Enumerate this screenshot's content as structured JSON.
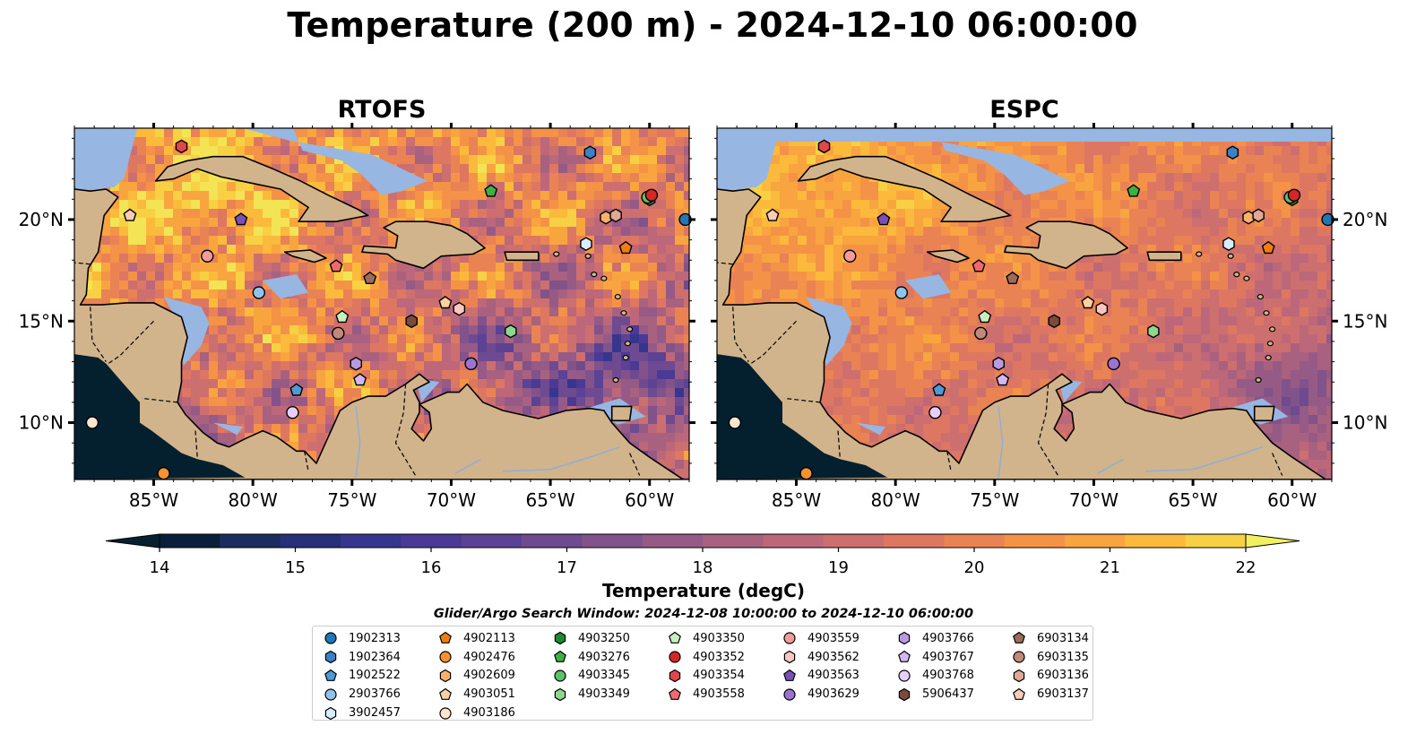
{
  "figure_title": "Temperature (200 m) - 2024-12-10 06:00:00",
  "panels": [
    {
      "title": "RTOFS",
      "grid": "rtofs"
    },
    {
      "title": "ESPC",
      "grid": "espc"
    }
  ],
  "map_extent": {
    "lon": [
      -89,
      -58
    ],
    "lat": [
      7.2,
      24.5
    ]
  },
  "lon_ticks": [
    -85,
    -80,
    -75,
    -70,
    -65,
    -60
  ],
  "lon_tick_labels": [
    "85°W",
    "80°W",
    "75°W",
    "70°W",
    "65°W",
    "60°W"
  ],
  "lat_ticks": [
    10,
    15,
    20
  ],
  "lat_tick_labels": [
    "10°N",
    "15°N",
    "20°N"
  ],
  "colorbar": {
    "label": "Temperature (degC)",
    "min": 14,
    "max": 22,
    "extend": "both",
    "tick_values": [
      14,
      15,
      16,
      17,
      18,
      19,
      20,
      21,
      22
    ],
    "tick_labels": [
      "14",
      "15",
      "16",
      "17",
      "18",
      "19",
      "20",
      "21",
      "22"
    ],
    "colors": [
      "#0b1f3a",
      "#1c2c5e",
      "#29307a",
      "#37368e",
      "#4a3a96",
      "#5b4295",
      "#6e4a90",
      "#82528a",
      "#965a86",
      "#a96180",
      "#bc677a",
      "#cd6e6f",
      "#dd7762",
      "#ea8354",
      "#f49348",
      "#f9a53f",
      "#fbba3c",
      "#f8d044",
      "#f3e455"
    ],
    "under_color": "#06202f",
    "over_color": "#f0f060"
  },
  "search_window": "Glider/Argo Search Window: 2024-12-08 10:00:00 to 2024-12-10 06:00:00",
  "colors": {
    "land": "#d2b48c",
    "shallow_water": "#97b6e1",
    "deep_cold": "#04202f",
    "coastline": "#000000"
  },
  "floats": [
    {
      "id": "1902313",
      "marker": "circle",
      "color": "#1f77b4",
      "lon": -58.2,
      "lat": 20.0
    },
    {
      "id": "1902364",
      "marker": "hexagon",
      "color": "#3a82c4",
      "lon": -63.0,
      "lat": 23.3
    },
    {
      "id": "1902522",
      "marker": "pentagon",
      "color": "#4d9ad6",
      "lon": -77.8,
      "lat": 11.6
    },
    {
      "id": "2903766",
      "marker": "circle",
      "color": "#8fc3ec",
      "lon": -79.7,
      "lat": 16.4
    },
    {
      "id": "3902457",
      "marker": "hexagon",
      "color": "#d8ecfb",
      "lon": -63.2,
      "lat": 18.8
    },
    {
      "id": "4902113",
      "marker": "pentagon",
      "color": "#ef7d12",
      "lon": -61.2,
      "lat": 18.6
    },
    {
      "id": "4902476",
      "marker": "circle",
      "color": "#f7932f",
      "lon": -84.5,
      "lat": 7.5
    },
    {
      "id": "4902609",
      "marker": "hexagon",
      "color": "#fbb06b",
      "lon": -62.2,
      "lat": 20.1
    },
    {
      "id": "4903051",
      "marker": "pentagon",
      "color": "#fdd0a2",
      "lon": -70.3,
      "lat": 15.9
    },
    {
      "id": "4903186",
      "marker": "circle",
      "color": "#fee6ce",
      "lon": -88.1,
      "lat": 10.0
    },
    {
      "id": "4903250",
      "marker": "hexagon",
      "color": "#1e8a2f",
      "lon": -60.0,
      "lat": 21.0
    },
    {
      "id": "4903276",
      "marker": "pentagon",
      "color": "#3cb043",
      "lon": -68.0,
      "lat": 21.4
    },
    {
      "id": "4903345",
      "marker": "circle",
      "color": "#5ec068",
      "lon": -60.1,
      "lat": 21.1
    },
    {
      "id": "4903349",
      "marker": "hexagon",
      "color": "#8fd68e",
      "lon": -67.0,
      "lat": 14.5
    },
    {
      "id": "4903350",
      "marker": "pentagon",
      "color": "#c7f0c0",
      "lon": -75.5,
      "lat": 15.2
    },
    {
      "id": "4903352",
      "marker": "circle",
      "color": "#d62728",
      "lon": -59.9,
      "lat": 21.2
    },
    {
      "id": "4903354",
      "marker": "hexagon",
      "color": "#e0474c",
      "lon": -83.6,
      "lat": 23.6
    },
    {
      "id": "4903558",
      "marker": "pentagon",
      "color": "#ee6a6e",
      "lon": -75.8,
      "lat": 17.7
    },
    {
      "id": "4903559",
      "marker": "circle",
      "color": "#f59a9a",
      "lon": -82.3,
      "lat": 18.2
    },
    {
      "id": "4903562",
      "marker": "hexagon",
      "color": "#fcc5c0",
      "lon": -69.6,
      "lat": 15.6
    },
    {
      "id": "4903563",
      "marker": "pentagon",
      "color": "#7b4fb8",
      "lon": -80.6,
      "lat": 20.0
    },
    {
      "id": "4903629",
      "marker": "circle",
      "color": "#9c74d0",
      "lon": -69.0,
      "lat": 12.9
    },
    {
      "id": "4903766",
      "marker": "hexagon",
      "color": "#b99ae2",
      "lon": -74.8,
      "lat": 12.9
    },
    {
      "id": "4903767",
      "marker": "pentagon",
      "color": "#d1b8f2",
      "lon": -74.6,
      "lat": 12.1
    },
    {
      "id": "4903768",
      "marker": "circle",
      "color": "#e6d0fb",
      "lon": -78.0,
      "lat": 10.5
    },
    {
      "id": "5906437",
      "marker": "hexagon",
      "color": "#7a4a3a",
      "lon": -72.0,
      "lat": 15.0
    },
    {
      "id": "6903134",
      "marker": "pentagon",
      "color": "#9c6b5a",
      "lon": -74.1,
      "lat": 17.1
    },
    {
      "id": "6903135",
      "marker": "circle",
      "color": "#c08a7a",
      "lon": -75.7,
      "lat": 14.4
    },
    {
      "id": "6903136",
      "marker": "hexagon",
      "color": "#e0a896",
      "lon": -61.7,
      "lat": 20.2
    },
    {
      "id": "6903137",
      "marker": "pentagon",
      "color": "#f6cdb9",
      "lon": -86.2,
      "lat": 20.2
    }
  ]
}
